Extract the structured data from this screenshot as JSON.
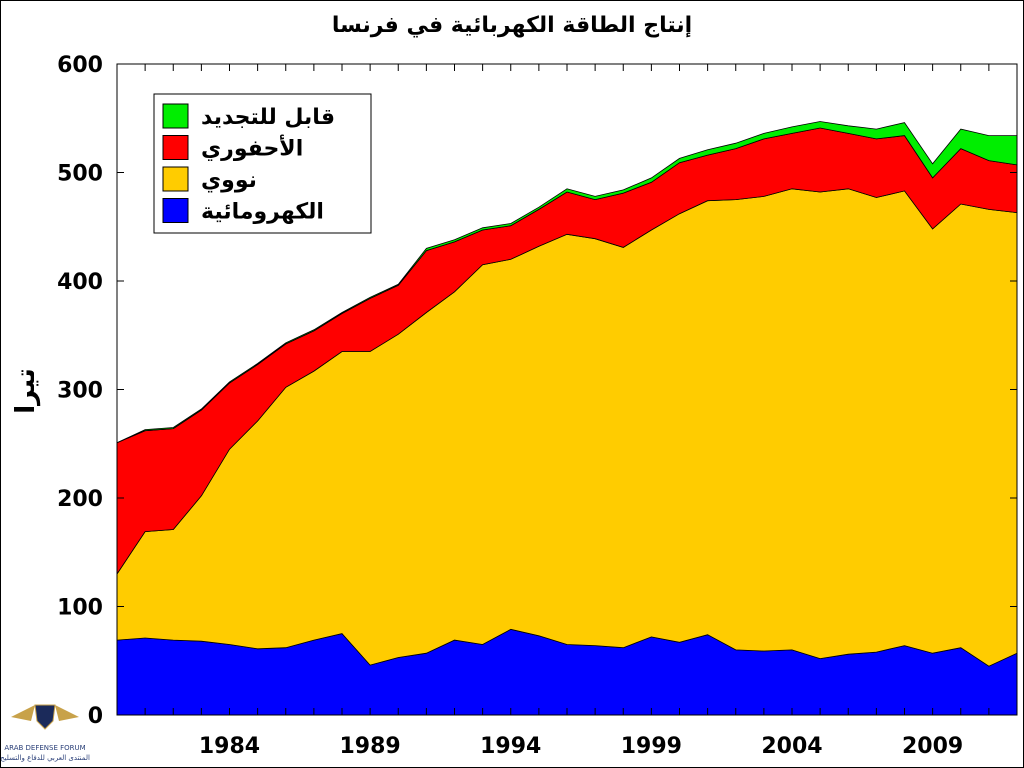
{
  "chart_data": {
    "type": "area",
    "stacked": true,
    "title": "إنتاج الطاقة الكهربائية في فرنسا",
    "ylabel": "تيرا",
    "xlabel": "",
    "ylim": [
      0,
      600
    ],
    "xlim": [
      1980,
      2012
    ],
    "yticks": [
      0,
      100,
      200,
      300,
      400,
      500,
      600
    ],
    "xticks": [
      1984,
      1989,
      1994,
      1999,
      2004,
      2009
    ],
    "grid": false,
    "legend_position": "top-left",
    "x": [
      1980,
      1981,
      1982,
      1983,
      1984,
      1985,
      1986,
      1987,
      1988,
      1989,
      1990,
      1991,
      1992,
      1993,
      1994,
      1995,
      1996,
      1997,
      1998,
      1999,
      2000,
      2001,
      2002,
      2003,
      2004,
      2005,
      2006,
      2007,
      2008,
      2009,
      2010,
      2011,
      2012
    ],
    "series": [
      {
        "name": "الكهرومائية",
        "color": "#0000ff",
        "values": [
          69,
          71,
          69,
          68,
          65,
          61,
          62,
          69,
          75,
          46,
          53,
          57,
          69,
          65,
          79,
          73,
          65,
          64,
          62,
          72,
          67,
          74,
          60,
          59,
          60,
          52,
          56,
          58,
          64,
          57,
          62,
          45,
          57
        ]
      },
      {
        "name": "نووي",
        "color": "#ffcc00",
        "values": [
          61,
          98,
          102,
          134,
          180,
          210,
          240,
          248,
          260,
          289,
          298,
          314,
          321,
          350,
          341,
          359,
          378,
          375,
          369,
          375,
          395,
          400,
          415,
          419,
          425,
          430,
          429,
          419,
          419,
          391,
          409,
          421,
          406
        ]
      },
      {
        "name": "الأحفوري",
        "color": "#ff0000",
        "values": [
          121,
          93,
          93,
          79,
          61,
          52,
          40,
          37,
          35,
          49,
          45,
          57,
          46,
          32,
          31,
          34,
          39,
          36,
          50,
          44,
          47,
          42,
          47,
          53,
          51,
          59,
          51,
          54,
          51,
          47,
          51,
          45,
          44
        ]
      },
      {
        "name": "قابل للتجديد",
        "color": "#00ee00",
        "values": [
          0,
          1,
          1,
          1,
          1,
          1,
          1,
          1,
          1,
          1,
          1,
          2,
          2,
          2,
          2,
          2,
          3,
          3,
          3,
          4,
          4,
          5,
          5,
          5,
          6,
          6,
          7,
          9,
          12,
          13,
          18,
          23,
          27
        ]
      }
    ]
  },
  "watermark": {
    "line1": "ARAB DEFENSE FORUM",
    "line2": "المنتدى العربي للدفاع والتسليح"
  }
}
